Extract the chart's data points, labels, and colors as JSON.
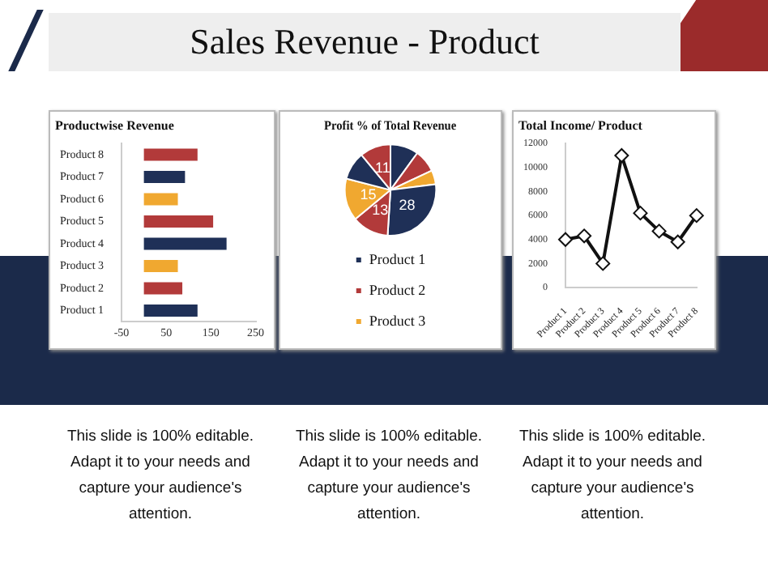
{
  "chart_data": [
    {
      "type": "other",
      "title": "Sales Revenue - Product"
    },
    {
      "type": "bar",
      "title": "Productwise Revenue",
      "orientation": "horizontal",
      "categories": [
        "Product 8",
        "Product 7",
        "Product 6",
        "Product 5",
        "Product 4",
        "Product 3",
        "Product 2",
        "Product 1"
      ],
      "values": [
        120,
        92,
        76,
        155,
        185,
        76,
        86,
        120
      ],
      "colors": [
        "#b23a3a",
        "#1f3057",
        "#f0a830",
        "#b23a3a",
        "#1f3057",
        "#f0a830",
        "#b23a3a",
        "#1f3057"
      ],
      "xlim": [
        -50,
        250
      ],
      "xticks": [
        -50,
        50,
        150,
        250
      ],
      "grid": false,
      "legend": false,
      "annotations": [
        "This slide is 100% editable. Adapt it to your needs and capture your audience's attention."
      ]
    },
    {
      "type": "pie",
      "title": "Profit % of Total Revenue",
      "categories": [
        "Product 1",
        "Product 2",
        "Product 3",
        null,
        null,
        null,
        null,
        null
      ],
      "values": [
        10,
        8,
        5,
        28,
        13,
        15,
        10,
        11
      ],
      "colors": [
        "#1f3057",
        "#b23a3a",
        "#f0a830",
        "#1f3057",
        "#b23a3a",
        "#f0a830",
        "#1f3057",
        "#b23a3a"
      ],
      "value_labels": [
        null,
        null,
        null,
        "28",
        "13",
        "15",
        null,
        "11"
      ],
      "legend": "bottom",
      "annotations": [
        "This slide is 100% editable. Adapt it to your needs and capture your audience's attention."
      ]
    },
    {
      "type": "line",
      "title": "Total Income/ Product",
      "categories": [
        "Product 1",
        "Product 2",
        "Product 3",
        "Product 4",
        "Product 5",
        "Product 6",
        "Product 7",
        "Product 8"
      ],
      "values": [
        4000,
        4300,
        2000,
        11000,
        6200,
        4700,
        3800,
        6000
      ],
      "color": "#111111",
      "ylim": [
        0,
        12000
      ],
      "yticks": [
        0,
        2000,
        4000,
        6000,
        8000,
        10000,
        12000
      ],
      "marker": "diamond",
      "line_style": "solid",
      "grid": false,
      "legend": false,
      "annotations": [
        "This slide is 100% editable. Adapt it to your needs and capture your audience's attention."
      ]
    }
  ]
}
